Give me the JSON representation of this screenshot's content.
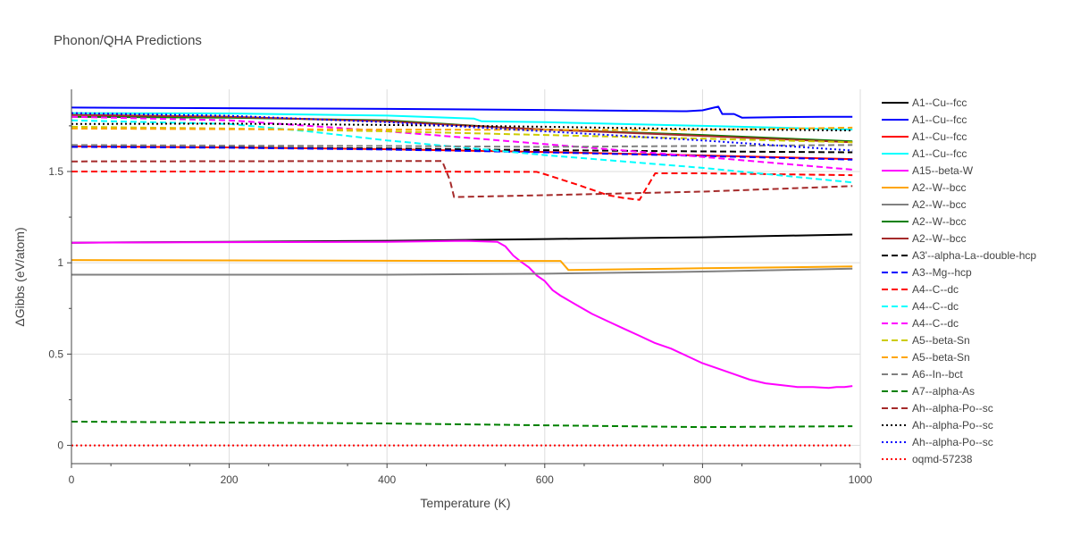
{
  "chart_data": {
    "type": "line",
    "title": "Phonon/QHA Predictions",
    "xlabel": "Temperature (K)",
    "ylabel": "ΔGibbs (eV/atom)",
    "xlim": [
      0,
      1000
    ],
    "ylim": [
      -0.1,
      1.95
    ],
    "xticks": [
      0,
      200,
      400,
      600,
      800,
      1000
    ],
    "yticks": [
      0,
      0.5,
      1,
      1.5
    ],
    "ytick_labels": [
      "0",
      "0.5",
      "1",
      "1.5"
    ],
    "grid": true,
    "legend_position": "right",
    "series": [
      {
        "name": "A1--Cu--fcc",
        "color": "#000000",
        "dash": "solid",
        "x": [
          0,
          200,
          400,
          600,
          800,
          990
        ],
        "y": [
          1.11,
          1.115,
          1.12,
          1.13,
          1.14,
          1.155
        ]
      },
      {
        "name": "A1--Cu--fcc",
        "color": "#0000ff",
        "dash": "solid",
        "x": [
          0,
          200,
          400,
          600,
          780,
          800,
          815,
          820,
          825,
          840,
          850,
          900,
          950,
          990
        ],
        "y": [
          1.85,
          1.847,
          1.843,
          1.837,
          1.83,
          1.835,
          1.85,
          1.855,
          1.815,
          1.815,
          1.795,
          1.798,
          1.8,
          1.8
        ]
      },
      {
        "name": "A1--Cu--fcc",
        "color": "#ff0000",
        "dash": "solid",
        "x": [
          0,
          200,
          400,
          600,
          800,
          990
        ],
        "y": [
          1.638,
          1.632,
          1.622,
          1.607,
          1.588,
          1.568
        ]
      },
      {
        "name": "A1--Cu--fcc",
        "color": "#00ffff",
        "dash": "solid",
        "x": [
          0,
          200,
          400,
          510,
          520,
          600,
          800,
          990
        ],
        "y": [
          1.82,
          1.818,
          1.806,
          1.79,
          1.775,
          1.77,
          1.75,
          1.73
        ]
      },
      {
        "name": "A15--beta-W",
        "color": "#ff00ff",
        "dash": "solid",
        "x": [
          0,
          200,
          400,
          500,
          540,
          550,
          560,
          570,
          580,
          590,
          600,
          610,
          620,
          640,
          660,
          680,
          700,
          720,
          740,
          760,
          780,
          800,
          820,
          840,
          860,
          880,
          900,
          920,
          940,
          960,
          970,
          980,
          990
        ],
        "y": [
          1.11,
          1.113,
          1.115,
          1.12,
          1.115,
          1.09,
          1.04,
          1.005,
          0.975,
          0.93,
          0.9,
          0.85,
          0.82,
          0.77,
          0.72,
          0.68,
          0.64,
          0.6,
          0.56,
          0.53,
          0.49,
          0.45,
          0.42,
          0.39,
          0.36,
          0.34,
          0.33,
          0.32,
          0.32,
          0.315,
          0.32,
          0.32,
          0.325
        ]
      },
      {
        "name": "A2--W--bcc",
        "color": "#ffa500",
        "dash": "solid",
        "x": [
          0,
          200,
          400,
          600,
          620,
          630,
          800,
          990
        ],
        "y": [
          1.015,
          1.013,
          1.011,
          1.01,
          1.01,
          0.96,
          0.97,
          0.98
        ]
      },
      {
        "name": "A2--W--bcc",
        "color": "#808080",
        "dash": "solid",
        "x": [
          0,
          200,
          400,
          600,
          800,
          990
        ],
        "y": [
          0.935,
          0.935,
          0.935,
          0.94,
          0.952,
          0.968
        ]
      },
      {
        "name": "A2--W--bcc",
        "color": "#008000",
        "dash": "solid",
        "x": [
          0,
          200,
          400,
          550,
          600,
          800,
          990
        ],
        "y": [
          1.8,
          1.795,
          1.78,
          1.74,
          1.73,
          1.7,
          1.665
        ]
      },
      {
        "name": "A2--W--bcc",
        "color": "#a52a2a",
        "dash": "solid",
        "x": [
          0,
          200,
          400,
          550,
          600,
          800,
          990
        ],
        "y": [
          1.81,
          1.8,
          1.775,
          1.74,
          1.73,
          1.695,
          1.66
        ]
      },
      {
        "name": "A3'--alpha-La--double-hcp",
        "color": "#000000",
        "dash": "dash",
        "x": [
          0,
          200,
          400,
          600,
          800,
          990
        ],
        "y": [
          1.635,
          1.632,
          1.626,
          1.617,
          1.61,
          1.605
        ]
      },
      {
        "name": "A3--Mg--hcp",
        "color": "#0000ff",
        "dash": "dash",
        "x": [
          0,
          200,
          400,
          600,
          800,
          990
        ],
        "y": [
          1.635,
          1.63,
          1.62,
          1.605,
          1.585,
          1.565
        ]
      },
      {
        "name": "A4--C--dc",
        "color": "#ff0000",
        "dash": "dash",
        "x": [
          0,
          200,
          400,
          590,
          600,
          640,
          680,
          700,
          720,
          740,
          800,
          990
        ],
        "y": [
          1.5,
          1.5,
          1.5,
          1.498,
          1.485,
          1.43,
          1.37,
          1.355,
          1.345,
          1.49,
          1.49,
          1.48
        ]
      },
      {
        "name": "A4--C--dc",
        "color": "#00ffff",
        "dash": "dash",
        "x": [
          0,
          200,
          300,
          400,
          600,
          800,
          990
        ],
        "y": [
          1.78,
          1.76,
          1.72,
          1.67,
          1.59,
          1.52,
          1.44
        ]
      },
      {
        "name": "A4--C--dc",
        "color": "#ff00ff",
        "dash": "dash",
        "x": [
          0,
          200,
          400,
          600,
          800,
          990
        ],
        "y": [
          1.8,
          1.78,
          1.72,
          1.65,
          1.58,
          1.51
        ]
      },
      {
        "name": "A5--beta-Sn",
        "color": "#cccc00",
        "dash": "dash",
        "x": [
          0,
          200,
          400,
          600,
          800,
          990
        ],
        "y": [
          1.745,
          1.735,
          1.72,
          1.7,
          1.68,
          1.66
        ]
      },
      {
        "name": "A5--beta-Sn",
        "color": "#ffa500",
        "dash": "dash",
        "x": [
          0,
          200,
          400,
          600,
          800,
          990
        ],
        "y": [
          1.735,
          1.732,
          1.73,
          1.728,
          1.728,
          1.74
        ]
      },
      {
        "name": "A6--In--bct",
        "color": "#808080",
        "dash": "dash",
        "x": [
          0,
          200,
          400,
          600,
          800,
          990
        ],
        "y": [
          1.645,
          1.642,
          1.64,
          1.635,
          1.64,
          1.645
        ]
      },
      {
        "name": "A7--alpha-As",
        "color": "#008000",
        "dash": "dash",
        "x": [
          0,
          200,
          400,
          600,
          800,
          990
        ],
        "y": [
          0.13,
          0.125,
          0.12,
          0.11,
          0.1,
          0.105
        ]
      },
      {
        "name": "Ah--alpha-Po--sc",
        "color": "#a52a2a",
        "dash": "dash",
        "x": [
          0,
          200,
          400,
          470,
          480,
          485,
          600,
          800,
          990
        ],
        "y": [
          1.555,
          1.556,
          1.557,
          1.557,
          1.45,
          1.36,
          1.37,
          1.39,
          1.42
        ]
      },
      {
        "name": "Ah--alpha-Po--sc",
        "color": "#000000",
        "dash": "dot",
        "x": [
          0,
          200,
          400,
          600,
          800,
          990
        ],
        "y": [
          1.76,
          1.762,
          1.755,
          1.745,
          1.732,
          1.725
        ]
      },
      {
        "name": "Ah--alpha-Po--sc",
        "color": "#0000ff",
        "dash": "dot",
        "x": [
          0,
          200,
          400,
          600,
          800,
          990
        ],
        "y": [
          1.82,
          1.805,
          1.77,
          1.72,
          1.67,
          1.615
        ]
      },
      {
        "name": "oqmd-57238",
        "color": "#ff0000",
        "dash": "dot",
        "x": [
          0,
          200,
          400,
          600,
          800,
          990
        ],
        "y": [
          0,
          0,
          0,
          0,
          0,
          0
        ]
      }
    ]
  }
}
